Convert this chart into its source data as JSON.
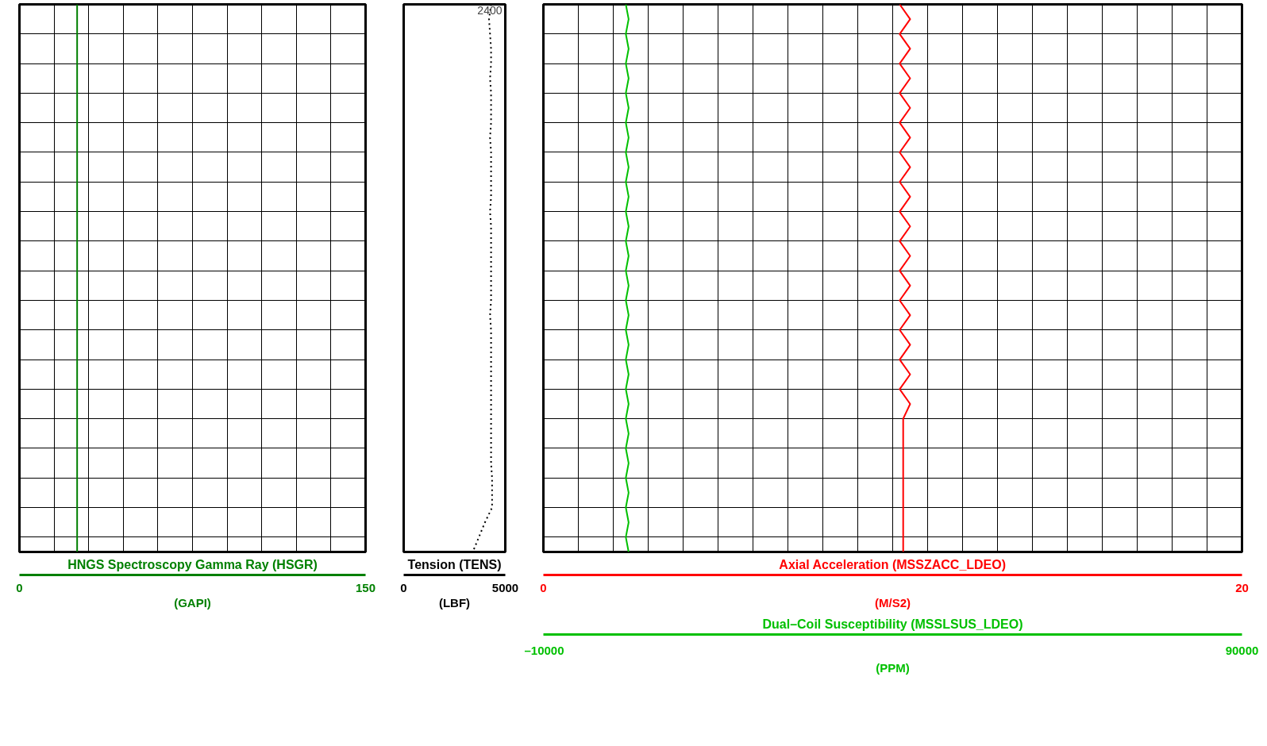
{
  "chart_data": [
    {
      "type": "line",
      "orientation": "horizontal",
      "title": "HNGS Spectroscopy Gamma Ray (HSGR)",
      "xlabel": "(GAPI)",
      "categories": [
        null,
        null,
        null,
        null,
        null,
        null,
        null,
        null,
        null,
        null,
        null,
        null,
        null,
        null,
        null,
        null,
        null,
        null,
        null,
        null,
        null,
        null,
        null,
        null,
        null,
        null,
        null,
        null,
        null,
        null,
        null,
        null,
        null,
        null,
        null,
        null,
        null,
        null
      ],
      "xlim": [
        0,
        150
      ],
      "xticks": [
        0,
        {
          "value": 15,
          "label": null
        },
        {
          "value": 30,
          "label": null
        },
        {
          "value": 45,
          "label": null
        },
        {
          "value": 60,
          "label": null
        },
        {
          "value": 75,
          "label": null
        },
        {
          "value": 90,
          "label": null
        },
        {
          "value": 105,
          "label": null
        },
        {
          "value": 120,
          "label": null
        },
        {
          "value": 135,
          "label": null
        },
        150
      ],
      "tick_labels": "x",
      "grid": true,
      "series": [
        {
          "color": "#008000",
          "line_style": "solid",
          "values": [
            25,
            25,
            25,
            25,
            25,
            25,
            25,
            25,
            25,
            25,
            25,
            25,
            25,
            25,
            25,
            25,
            25,
            25,
            25,
            25,
            25,
            25,
            25,
            25,
            25,
            25,
            25,
            25,
            25,
            25,
            25,
            25,
            25,
            25,
            25,
            25,
            25,
            25
          ]
        }
      ]
    },
    {
      "type": "line",
      "orientation": "horizontal",
      "title": "Tension (TENS)",
      "xlabel": "(LBF)",
      "categories": [
        null,
        null,
        null,
        null,
        null,
        null,
        null,
        null,
        null,
        null,
        null,
        null,
        null,
        null,
        null,
        null,
        null,
        null,
        null,
        null,
        null,
        null,
        null,
        null,
        null,
        null,
        null,
        null,
        null,
        null,
        null,
        null,
        null,
        null,
        null,
        null,
        null,
        null
      ],
      "xlim": [
        0,
        5000
      ],
      "xticks": [
        0,
        5000
      ],
      "tick_labels": "x",
      "annotations": [
        "2400"
      ],
      "series": [
        {
          "color": "#000000",
          "line_style": "dotted",
          "values": [
            4300,
            4200,
            4250,
            4300,
            4300,
            4250,
            4300,
            4300,
            4300,
            4250,
            4300,
            4300,
            4300,
            4300,
            4250,
            4300,
            4300,
            4300,
            4300,
            4300,
            4300,
            4250,
            4300,
            4300,
            4300,
            4300,
            4300,
            4300,
            4300,
            4300,
            4300,
            4300,
            4350,
            4350,
            4350,
            4000,
            3700,
            3400
          ]
        }
      ]
    },
    {
      "type": "line",
      "orientation": "horizontal",
      "categories": [
        null,
        null,
        null,
        null,
        null,
        null,
        null,
        null,
        null,
        null,
        null,
        null,
        null,
        null,
        null,
        null,
        null,
        null,
        null,
        null,
        null,
        null,
        null,
        null,
        null,
        null,
        null,
        null,
        null,
        null,
        null,
        null,
        null,
        null,
        null,
        null,
        null,
        null
      ],
      "xlim": [
        0,
        20
      ],
      "xticks": [
        0,
        {
          "value": 1,
          "label": null
        },
        {
          "value": 2,
          "label": null
        },
        {
          "value": 3,
          "label": null
        },
        {
          "value": 4,
          "label": null
        },
        {
          "value": 5,
          "label": null
        },
        {
          "value": 6,
          "label": null
        },
        {
          "value": 7,
          "label": null
        },
        {
          "value": 8,
          "label": null
        },
        {
          "value": 9,
          "label": null
        },
        {
          "value": 10,
          "label": null
        },
        {
          "value": 11,
          "label": null
        },
        {
          "value": 12,
          "label": null
        },
        {
          "value": 13,
          "label": null
        },
        {
          "value": 14,
          "label": null
        },
        {
          "value": 15,
          "label": null
        },
        {
          "value": 16,
          "label": null
        },
        {
          "value": 17,
          "label": null
        },
        {
          "value": 18,
          "label": null
        },
        {
          "value": 19,
          "label": null
        },
        20
      ],
      "xlabel": "(M/S2)",
      "x2lim": [
        -10000,
        90000
      ],
      "x2ticks": [
        {
          "value": -10000,
          "label": "–10000"
        },
        90000
      ],
      "x2label": "(PPM)",
      "tick_labels": "x",
      "grid": true,
      "series": [
        {
          "name": "Axial Acceleration (MSSZACC_LDEO)",
          "color": "#ff0000",
          "line_style": "solid",
          "values": [
            10.2,
            10.5,
            10.2,
            10.5,
            10.2,
            10.5,
            10.2,
            10.5,
            10.2,
            10.5,
            10.2,
            10.5,
            10.2,
            10.5,
            10.2,
            10.5,
            10.2,
            10.5,
            10.2,
            10.5,
            10.2,
            10.5,
            10.2,
            10.5,
            10.2,
            10.5,
            10.2,
            10.5,
            10.3,
            10.3,
            10.3,
            10.3,
            10.3,
            10.3,
            10.3,
            10.3,
            10.3,
            10.3
          ]
        },
        {
          "name": "Dual–Coil Susceptibility (MSSLSUS_LDEO)",
          "color": "#00c000",
          "line_style": "solid",
          "axis": "x2",
          "values": [
            1800,
            2200,
            1800,
            2200,
            1800,
            2200,
            1800,
            2200,
            1800,
            2200,
            1800,
            2200,
            1800,
            2200,
            1800,
            2200,
            1800,
            2200,
            1800,
            2200,
            1800,
            2200,
            1800,
            2200,
            1800,
            2200,
            1800,
            2200,
            1800,
            2200,
            1800,
            2200,
            1800,
            2200,
            1800,
            2200,
            1800,
            2200
          ]
        }
      ]
    }
  ]
}
